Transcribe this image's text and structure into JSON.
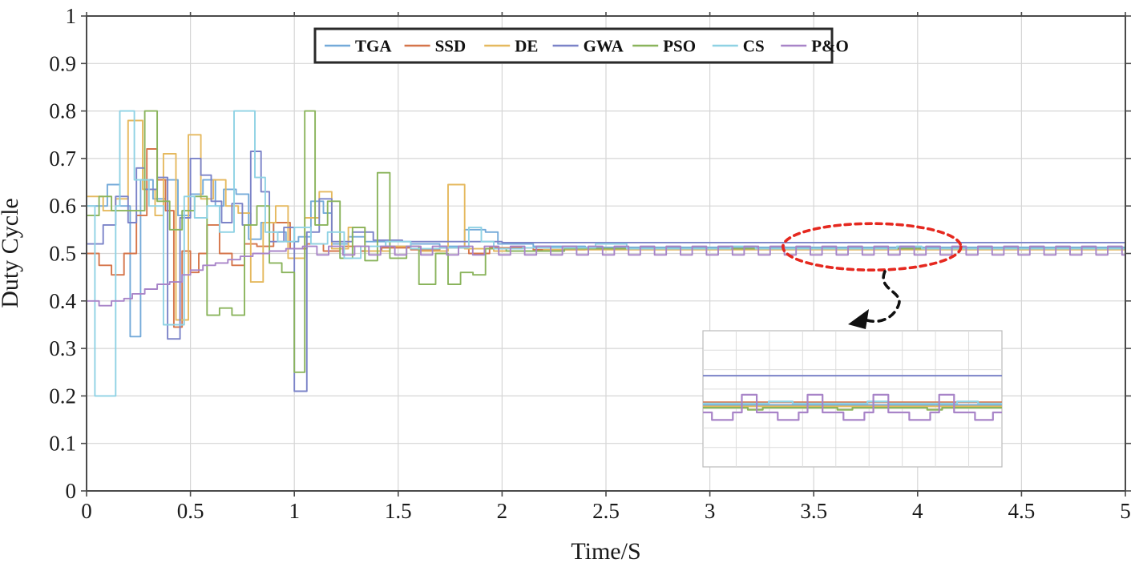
{
  "chart_data": {
    "type": "line",
    "subtype": "stairstep",
    "title": "",
    "xlabel": "Time/S",
    "ylabel": "Duty Cycle",
    "xlim": [
      0,
      5
    ],
    "ylim": [
      0,
      1
    ],
    "grid": true,
    "xticks": [
      0,
      0.5,
      1,
      1.5,
      2,
      2.5,
      3,
      3.5,
      4,
      4.5,
      5
    ],
    "xtick_labels": [
      "0",
      "0.5",
      "1",
      "1.5",
      "2",
      "2.5",
      "3",
      "3.5",
      "4",
      "4.5",
      "5"
    ],
    "yticks": [
      0,
      0.1,
      0.2,
      0.3,
      0.4,
      0.5,
      0.6,
      0.7,
      0.8,
      0.9,
      1
    ],
    "ytick_labels": [
      "0",
      "0.1",
      "0.2",
      "0.3",
      "0.4",
      "0.5",
      "0.6",
      "0.7",
      "0.8",
      "0.9",
      "1"
    ],
    "legend_position": "north",
    "series": [
      {
        "name": "TGA",
        "color": "#74aad9",
        "steps": [
          [
            0,
            0.6
          ],
          [
            0.1,
            0.645
          ],
          [
            0.16,
            0.6
          ],
          [
            0.21,
            0.325
          ],
          [
            0.26,
            0.655
          ],
          [
            0.32,
            0.615
          ],
          [
            0.38,
            0.655
          ],
          [
            0.44,
            0.58
          ],
          [
            0.5,
            0.625
          ],
          [
            0.56,
            0.655
          ],
          [
            0.62,
            0.6
          ],
          [
            0.66,
            0.635
          ],
          [
            0.72,
            0.625
          ],
          [
            0.78,
            0.53
          ],
          [
            0.84,
            0.565
          ],
          [
            0.9,
            0.545
          ],
          [
            0.96,
            0.525
          ],
          [
            1.02,
            0.535
          ],
          [
            1.08,
            0.61
          ],
          [
            1.14,
            0.585
          ],
          [
            1.18,
            0.52
          ],
          [
            1.26,
            0.535
          ],
          [
            1.34,
            0.525
          ],
          [
            1.44,
            0.515
          ],
          [
            1.56,
            0.52
          ],
          [
            1.7,
            0.515
          ],
          [
            1.82,
            0.55
          ],
          [
            1.92,
            0.545
          ],
          [
            1.98,
            0.52
          ],
          [
            2.15,
            0.515
          ],
          [
            2.4,
            0.513
          ],
          [
            5,
            0.513
          ]
        ]
      },
      {
        "name": "SSD",
        "color": "#d5754a",
        "steps": [
          [
            0,
            0.5
          ],
          [
            0.06,
            0.475
          ],
          [
            0.12,
            0.455
          ],
          [
            0.18,
            0.5
          ],
          [
            0.24,
            0.58
          ],
          [
            0.29,
            0.72
          ],
          [
            0.34,
            0.655
          ],
          [
            0.38,
            0.59
          ],
          [
            0.42,
            0.345
          ],
          [
            0.46,
            0.505
          ],
          [
            0.5,
            0.46
          ],
          [
            0.54,
            0.5
          ],
          [
            0.58,
            0.56
          ],
          [
            0.64,
            0.5
          ],
          [
            0.7,
            0.475
          ],
          [
            0.76,
            0.52
          ],
          [
            0.82,
            0.515
          ],
          [
            0.9,
            0.565
          ],
          [
            0.98,
            0.51
          ],
          [
            1.06,
            0.52
          ],
          [
            1.14,
            0.505
          ],
          [
            1.22,
            0.515
          ],
          [
            1.32,
            0.505
          ],
          [
            1.42,
            0.512
          ],
          [
            1.56,
            0.508
          ],
          [
            1.7,
            0.512
          ],
          [
            1.84,
            0.5
          ],
          [
            1.94,
            0.512
          ],
          [
            2.15,
            0.508
          ],
          [
            2.4,
            0.51
          ],
          [
            5,
            0.51
          ]
        ]
      },
      {
        "name": "DE",
        "color": "#e5b95f",
        "steps": [
          [
            0,
            0.62
          ],
          [
            0.08,
            0.59
          ],
          [
            0.14,
            0.615
          ],
          [
            0.2,
            0.78
          ],
          [
            0.27,
            0.635
          ],
          [
            0.33,
            0.58
          ],
          [
            0.37,
            0.71
          ],
          [
            0.43,
            0.36
          ],
          [
            0.49,
            0.75
          ],
          [
            0.55,
            0.615
          ],
          [
            0.61,
            0.655
          ],
          [
            0.67,
            0.6
          ],
          [
            0.73,
            0.585
          ],
          [
            0.79,
            0.44
          ],
          [
            0.85,
            0.565
          ],
          [
            0.91,
            0.6
          ],
          [
            0.97,
            0.49
          ],
          [
            1.05,
            0.575
          ],
          [
            1.12,
            0.63
          ],
          [
            1.18,
            0.51
          ],
          [
            1.26,
            0.555
          ],
          [
            1.34,
            0.505
          ],
          [
            1.46,
            0.515
          ],
          [
            1.6,
            0.505
          ],
          [
            1.74,
            0.645
          ],
          [
            1.82,
            0.51
          ],
          [
            1.96,
            0.505
          ],
          [
            2.2,
            0.508
          ],
          [
            5,
            0.508
          ]
        ]
      },
      {
        "name": "GWA",
        "color": "#7b83c8",
        "steps": [
          [
            0,
            0.52
          ],
          [
            0.08,
            0.56
          ],
          [
            0.14,
            0.62
          ],
          [
            0.2,
            0.565
          ],
          [
            0.24,
            0.68
          ],
          [
            0.28,
            0.635
          ],
          [
            0.34,
            0.66
          ],
          [
            0.39,
            0.32
          ],
          [
            0.45,
            0.575
          ],
          [
            0.5,
            0.7
          ],
          [
            0.55,
            0.665
          ],
          [
            0.6,
            0.61
          ],
          [
            0.65,
            0.565
          ],
          [
            0.7,
            0.605
          ],
          [
            0.75,
            0.56
          ],
          [
            0.79,
            0.715
          ],
          [
            0.84,
            0.63
          ],
          [
            0.88,
            0.525
          ],
          [
            0.95,
            0.555
          ],
          [
            1.0,
            0.21
          ],
          [
            1.06,
            0.545
          ],
          [
            1.12,
            0.615
          ],
          [
            1.18,
            0.525
          ],
          [
            1.28,
            0.545
          ],
          [
            1.38,
            0.528
          ],
          [
            1.52,
            0.525
          ],
          [
            2.0,
            0.523
          ],
          [
            5,
            0.523
          ]
        ]
      },
      {
        "name": "PSO",
        "color": "#8ab45c",
        "steps": [
          [
            0,
            0.58
          ],
          [
            0.06,
            0.62
          ],
          [
            0.12,
            0.59
          ],
          [
            0.28,
            0.8
          ],
          [
            0.34,
            0.61
          ],
          [
            0.4,
            0.55
          ],
          [
            0.46,
            0.59
          ],
          [
            0.52,
            0.62
          ],
          [
            0.58,
            0.37
          ],
          [
            0.64,
            0.385
          ],
          [
            0.7,
            0.37
          ],
          [
            0.76,
            0.56
          ],
          [
            0.82,
            0.6
          ],
          [
            0.88,
            0.48
          ],
          [
            0.94,
            0.46
          ],
          [
            1.0,
            0.25
          ],
          [
            1.05,
            0.8
          ],
          [
            1.1,
            0.56
          ],
          [
            1.16,
            0.61
          ],
          [
            1.22,
            0.49
          ],
          [
            1.28,
            0.555
          ],
          [
            1.34,
            0.485
          ],
          [
            1.4,
            0.67
          ],
          [
            1.46,
            0.49
          ],
          [
            1.54,
            0.515
          ],
          [
            1.6,
            0.435
          ],
          [
            1.68,
            0.5
          ],
          [
            1.74,
            0.435
          ],
          [
            1.8,
            0.46
          ],
          [
            1.86,
            0.455
          ],
          [
            1.92,
            0.51
          ],
          [
            2.02,
            0.505
          ],
          [
            2.3,
            0.51
          ],
          [
            5,
            0.507
          ]
        ]
      },
      {
        "name": "CS",
        "color": "#8fd2e4",
        "steps": [
          [
            0,
            0.6
          ],
          [
            0.04,
            0.2
          ],
          [
            0.14,
            0.6
          ],
          [
            0.16,
            0.8
          ],
          [
            0.23,
            0.655
          ],
          [
            0.3,
            0.6
          ],
          [
            0.37,
            0.35
          ],
          [
            0.47,
            0.62
          ],
          [
            0.52,
            0.575
          ],
          [
            0.58,
            0.6
          ],
          [
            0.64,
            0.545
          ],
          [
            0.71,
            0.8
          ],
          [
            0.81,
            0.66
          ],
          [
            0.86,
            0.545
          ],
          [
            0.92,
            0.525
          ],
          [
            1.0,
            0.555
          ],
          [
            1.08,
            0.52
          ],
          [
            1.16,
            0.545
          ],
          [
            1.24,
            0.49
          ],
          [
            1.32,
            0.515
          ],
          [
            1.44,
            0.525
          ],
          [
            1.56,
            0.51
          ],
          [
            1.7,
            0.512
          ],
          [
            1.84,
            0.555
          ],
          [
            1.9,
            0.525
          ],
          [
            1.96,
            0.51
          ],
          [
            2.1,
            0.512
          ],
          [
            2.45,
            0.52
          ],
          [
            2.6,
            0.51
          ],
          [
            3.1,
            0.515
          ],
          [
            3.22,
            0.51
          ],
          [
            3.9,
            0.515
          ],
          [
            4.02,
            0.51
          ],
          [
            5,
            0.51
          ]
        ]
      },
      {
        "name": "P&O",
        "color": "#a884c8",
        "steps": [
          [
            0,
            0.4
          ],
          [
            0.06,
            0.39
          ],
          [
            0.12,
            0.4
          ],
          [
            0.18,
            0.405
          ],
          [
            0.22,
            0.415
          ],
          [
            0.28,
            0.425
          ],
          [
            0.34,
            0.435
          ],
          [
            0.4,
            0.44
          ],
          [
            0.46,
            0.455
          ],
          [
            0.5,
            0.465
          ],
          [
            0.56,
            0.475
          ],
          [
            0.62,
            0.48
          ],
          [
            0.68,
            0.487
          ],
          [
            0.74,
            0.494
          ],
          [
            0.8,
            0.5
          ],
          [
            0.88,
            0.505
          ],
          [
            0.96,
            0.51
          ]
        ],
        "steady_oscillation": {
          "start": 1.04,
          "end": 5,
          "high": 0.515,
          "low": 0.497,
          "period": 0.125,
          "high_frac": 0.55
        }
      }
    ],
    "annotations": {
      "zoom_ellipse": {
        "cx_t": 3.78,
        "cy_d": 0.514,
        "color": "#e5281f",
        "style": "dotted"
      },
      "arrow": {
        "style": "dashed",
        "color": "#111111",
        "from": "ellipse",
        "to": "inset"
      },
      "inset": {
        "description": "zoomed view of settled duty-cycle band",
        "series": [
          {
            "name": "GWA",
            "color": "#7b83c8",
            "pts": [
              [
                0,
                0.33
              ],
              [
                1,
                0.33
              ]
            ]
          },
          {
            "name": "TGA",
            "color": "#74aad9",
            "pts": [
              [
                0,
                0.545
              ],
              [
                1,
                0.545
              ]
            ]
          },
          {
            "name": "SSD",
            "color": "#d5754a",
            "pts": [
              [
                0,
                0.525
              ],
              [
                1,
                0.525
              ]
            ]
          },
          {
            "name": "DE",
            "color": "#e5b95f",
            "pts": [
              [
                0,
                0.555
              ],
              [
                1,
                0.555
              ]
            ]
          },
          {
            "name": "CS",
            "color": "#8fd2e4",
            "pts": [
              [
                0,
                0.535
              ],
              [
                0.22,
                0.52
              ],
              [
                0.3,
                0.535
              ],
              [
                0.55,
                0.52
              ],
              [
                0.62,
                0.535
              ],
              [
                0.85,
                0.52
              ],
              [
                0.92,
                0.535
              ],
              [
                1,
                0.535
              ]
            ]
          },
          {
            "name": "PSO",
            "color": "#8ab45c",
            "pts": [
              [
                0,
                0.565
              ],
              [
                0.15,
                0.58
              ],
              [
                0.2,
                0.565
              ],
              [
                0.45,
                0.58
              ],
              [
                0.5,
                0.565
              ],
              [
                0.75,
                0.58
              ],
              [
                0.8,
                0.565
              ],
              [
                1,
                0.565
              ]
            ]
          },
          {
            "name": "P&O",
            "color": "#a884c8",
            "pts": [
              [
                0,
                0.6
              ],
              [
                0.03,
                0.655
              ],
              [
                0.1,
                0.6
              ],
              [
                0.13,
                0.47
              ],
              [
                0.18,
                0.6
              ],
              [
                0.25,
                0.655
              ],
              [
                0.32,
                0.6
              ],
              [
                0.35,
                0.47
              ],
              [
                0.4,
                0.6
              ],
              [
                0.47,
                0.655
              ],
              [
                0.54,
                0.6
              ],
              [
                0.57,
                0.47
              ],
              [
                0.62,
                0.6
              ],
              [
                0.69,
                0.655
              ],
              [
                0.76,
                0.6
              ],
              [
                0.79,
                0.47
              ],
              [
                0.84,
                0.6
              ],
              [
                0.91,
                0.655
              ],
              [
                0.97,
                0.6
              ],
              [
                1,
                0.6
              ]
            ]
          }
        ]
      }
    },
    "colors": {
      "grid": "#d6d6d6",
      "axis_border": "#4a4a4a",
      "tick_text": "#1a1a1a",
      "legend_border": "#2a2a2a",
      "background": "#ffffff"
    }
  }
}
